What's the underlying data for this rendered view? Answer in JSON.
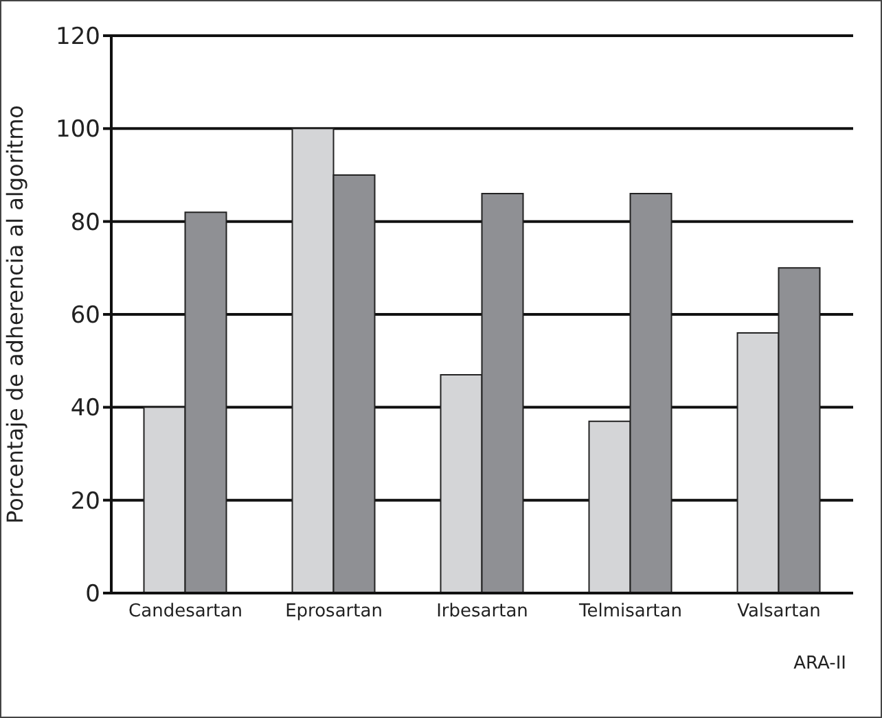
{
  "chart_data": {
    "type": "bar",
    "ylabel": "Porcentaje de adherencia al algoritmo",
    "xlabel": "ARA-II",
    "categories": [
      "Candesartan",
      "Eprosartan",
      "Irbesartan",
      "Telmisartan",
      "Valsartan"
    ],
    "series": [
      {
        "color": "#d4d5d7",
        "values": [
          40,
          100,
          47,
          37,
          56
        ]
      },
      {
        "color": "#8f9094",
        "values": [
          82,
          90,
          86,
          86,
          70
        ]
      }
    ],
    "ylim": [
      0,
      120
    ],
    "yticks": [
      0,
      20,
      40,
      60,
      80,
      100,
      120
    ],
    "grid": "y",
    "legend": false
  }
}
